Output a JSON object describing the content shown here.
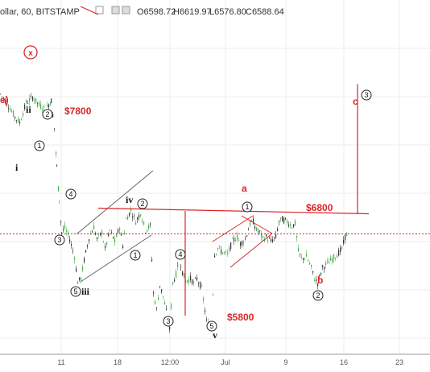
{
  "header": {
    "symbol": "ollar, 60, BITSTAMP",
    "ohlc": [
      {
        "k": "O",
        "v": "6598.72"
      },
      {
        "k": "H",
        "v": "6619.97"
      },
      {
        "k": "L",
        "v": "6576.80"
      },
      {
        "k": "C",
        "v": "6588.64"
      }
    ]
  },
  "colors": {
    "up": "#4caf50",
    "down": "#333333",
    "accent": "#d62728",
    "channel": "#666666",
    "axis_text": "#555555"
  },
  "x_axis": {
    "labels": [
      "11",
      "18",
      "12:00",
      "Jul",
      "9",
      "16",
      "23"
    ]
  },
  "chart_data": {
    "type": "candlestick",
    "symbol": "ollar",
    "interval": "60",
    "exchange": "BITSTAMP",
    "last_bar": {
      "open": 6598.72,
      "high": 6619.97,
      "low": 6576.8,
      "close": 6588.64
    },
    "price_levels": [
      {
        "label": "$7800",
        "value": 7800
      },
      {
        "label": "$6800",
        "value": 6800
      },
      {
        "label": "$5800",
        "value": 5800
      }
    ],
    "current_price_line": 6588.64,
    "projection_line_top": 7950,
    "wave_labels": [
      "e)",
      "ii",
      "i",
      "iii",
      "iv",
      "v",
      "a",
      "b",
      "c",
      "x"
    ],
    "circled_wave_labels": [
      "1",
      "2",
      "3",
      "4",
      "5",
      "1",
      "2",
      "3",
      "4",
      "5",
      "1",
      "2",
      "3",
      "x"
    ],
    "path_points": [
      [
        0,
        7860
      ],
      [
        8,
        7780
      ],
      [
        18,
        7650
      ],
      [
        24,
        7600
      ],
      [
        32,
        7780
      ],
      [
        40,
        7830
      ],
      [
        48,
        7760
      ],
      [
        56,
        7720
      ],
      [
        63,
        7800
      ],
      [
        67,
        7550
      ],
      [
        70,
        7200
      ],
      [
        73,
        6900
      ],
      [
        76,
        6600
      ],
      [
        80,
        6640
      ],
      [
        86,
        6540
      ],
      [
        92,
        6380
      ],
      [
        96,
        6150
      ],
      [
        100,
        6180
      ],
      [
        104,
        6350
      ],
      [
        110,
        6550
      ],
      [
        116,
        6650
      ],
      [
        120,
        6540
      ],
      [
        126,
        6600
      ],
      [
        130,
        6450
      ],
      [
        136,
        6620
      ],
      [
        142,
        6520
      ],
      [
        148,
        6650
      ],
      [
        152,
        6480
      ],
      [
        156,
        6720
      ],
      [
        162,
        6800
      ],
      [
        168,
        6700
      ],
      [
        174,
        6780
      ],
      [
        180,
        6620
      ],
      [
        186,
        6660
      ],
      [
        190,
        6050
      ],
      [
        194,
        5900
      ],
      [
        198,
        6120
      ],
      [
        202,
        6020
      ],
      [
        206,
        5880
      ],
      [
        210,
        5720
      ],
      [
        214,
        6140
      ],
      [
        218,
        6220
      ],
      [
        222,
        6380
      ],
      [
        226,
        6240
      ],
      [
        230,
        6160
      ],
      [
        236,
        6180
      ],
      [
        240,
        6140
      ],
      [
        244,
        6180
      ],
      [
        250,
        6090
      ],
      [
        256,
        5790
      ],
      [
        262,
        5720
      ],
      [
        266,
        6400
      ],
      [
        270,
        6460
      ],
      [
        276,
        6420
      ],
      [
        282,
        6400
      ],
      [
        288,
        6520
      ],
      [
        294,
        6560
      ],
      [
        298,
        6500
      ],
      [
        304,
        6540
      ],
      [
        310,
        6680
      ],
      [
        314,
        6700
      ],
      [
        318,
        6620
      ],
      [
        322,
        6600
      ],
      [
        326,
        6540
      ],
      [
        330,
        6560
      ],
      [
        336,
        6520
      ],
      [
        342,
        6560
      ],
      [
        346,
        6700
      ],
      [
        350,
        6720
      ],
      [
        356,
        6700
      ],
      [
        362,
        6660
      ],
      [
        366,
        6680
      ],
      [
        370,
        6430
      ],
      [
        374,
        6360
      ],
      [
        380,
        6380
      ],
      [
        386,
        6280
      ],
      [
        390,
        6180
      ],
      [
        394,
        6140
      ],
      [
        400,
        6280
      ],
      [
        406,
        6320
      ],
      [
        412,
        6360
      ],
      [
        418,
        6400
      ],
      [
        424,
        6450
      ],
      [
        428,
        6560
      ],
      [
        432,
        6610
      ]
    ]
  }
}
